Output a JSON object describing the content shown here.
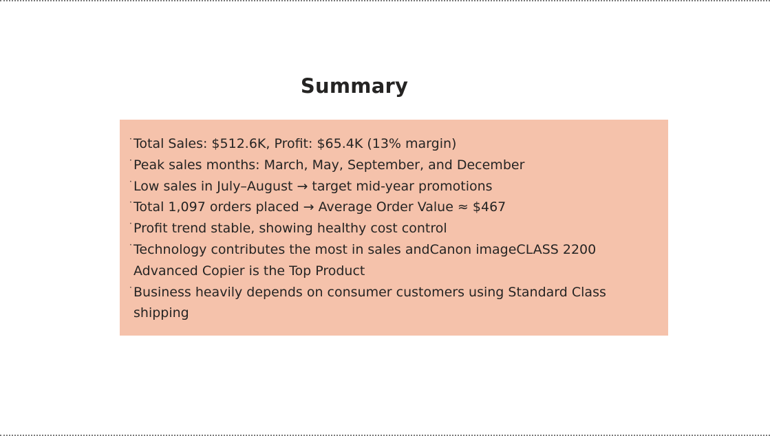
{
  "title": "Summary",
  "colors": {
    "box_background": "#f5c2ab",
    "text": "#252423"
  },
  "bullet_glyph": "·",
  "bullets": [
    "Total Sales: $512.6K, Profit: $65.4K (13% margin)",
    "Peak sales months: March, May, September, and December",
    "Low sales in July–August → target mid-year promotions",
    "Total 1,097 orders placed → Average Order Value ≈ $467",
    "Profit trend stable, showing healthy cost control",
    "Technology contributes the most in sales andCanon imageCLASS 2200 Advanced Copier is the Top Product",
    "Business heavily depends on consumer customers using Standard Class shipping"
  ]
}
